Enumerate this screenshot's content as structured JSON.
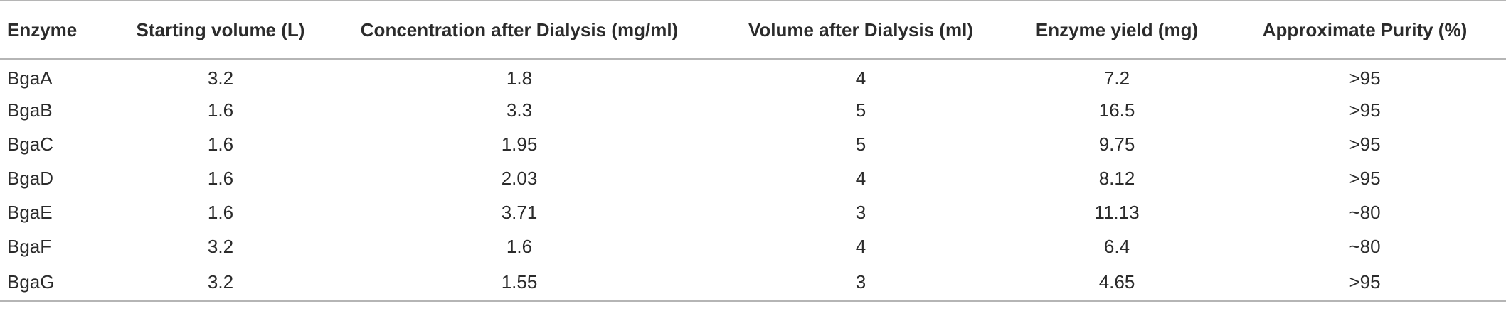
{
  "table": {
    "headers": [
      "Enzyme",
      "Starting volume (L)",
      "Concentration after Dialysis (mg/ml)",
      "Volume after Dialysis (ml)",
      "Enzyme yield (mg)",
      "Approximate Purity (%)"
    ],
    "rows": [
      [
        "BgaA",
        "3.2",
        "1.8",
        "4",
        "7.2",
        ">95"
      ],
      [
        "BgaB",
        "1.6",
        "3.3",
        "5",
        "16.5",
        ">95"
      ],
      [
        "BgaC",
        "1.6",
        "1.95",
        "5",
        "9.75",
        ">95"
      ],
      [
        "BgaD",
        "1.6",
        "2.03",
        "4",
        "8.12",
        ">95"
      ],
      [
        "BgaE",
        "1.6",
        "3.71",
        "3",
        "11.13",
        "~80"
      ],
      [
        "BgaF",
        "3.2",
        "1.6",
        "4",
        "6.4",
        "~80"
      ],
      [
        "BgaG",
        "3.2",
        "1.55",
        "3",
        "4.65",
        ">95"
      ]
    ]
  }
}
